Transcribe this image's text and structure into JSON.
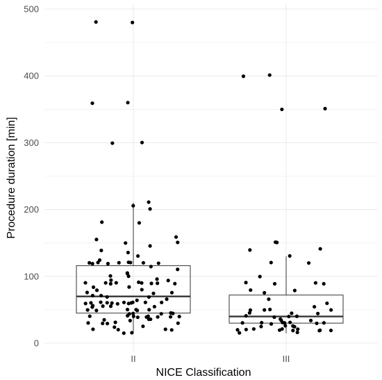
{
  "chart_data": {
    "type": "boxplot",
    "xlabel": "NICE Classification",
    "ylabel": "Procedure duration [min]",
    "ylim": [
      0,
      500
    ],
    "y_ticks": [
      0,
      100,
      200,
      300,
      400,
      500
    ],
    "grid": true,
    "legend": "none",
    "colors": {
      "grid": "#ebebeb",
      "box_stroke": "#333333",
      "point": "#000000",
      "tick_text": "#4d4d4d"
    },
    "categories": [
      "II",
      "III"
    ],
    "boxes": [
      {
        "category": "II",
        "min": 15,
        "q1": 45,
        "median": 70,
        "q3": 116,
        "max": 210
      },
      {
        "category": "III",
        "min": 15,
        "q1": 30,
        "median": 40,
        "q3": 72,
        "max": 130
      }
    ],
    "points": [
      {
        "category": "II",
        "values": [
          480,
          480,
          360,
          360,
          300,
          300,
          210,
          205,
          200,
          180,
          180,
          160,
          155,
          150,
          150,
          145,
          140,
          135,
          130,
          125,
          120,
          120,
          120,
          120,
          120,
          120,
          120,
          120,
          120,
          115,
          110,
          105,
          105,
          100,
          100,
          95,
          95,
          95,
          90,
          90,
          90,
          90,
          90,
          90,
          90,
          90,
          90,
          85,
          85,
          80,
          80,
          75,
          75,
          75,
          70,
          70,
          70,
          70,
          65,
          65,
          60,
          60,
          60,
          60,
          60,
          60,
          60,
          60,
          60,
          60,
          60,
          60,
          55,
          55,
          55,
          55,
          55,
          50,
          50,
          50,
          50,
          50,
          50,
          45,
          45,
          45,
          45,
          45,
          40,
          40,
          40,
          40,
          40,
          40,
          40,
          40,
          40,
          35,
          35,
          35,
          35,
          30,
          30,
          30,
          30,
          30,
          25,
          25,
          20,
          20,
          20,
          20,
          15,
          15
        ]
      },
      {
        "category": "III",
        "values": [
          400,
          400,
          350,
          350,
          150,
          150,
          140,
          140,
          130,
          120,
          120,
          100,
          90,
          90,
          90,
          90,
          80,
          80,
          75,
          65,
          60,
          55,
          50,
          50,
          50,
          50,
          45,
          45,
          45,
          40,
          40,
          40,
          40,
          35,
          35,
          35,
          30,
          30,
          30,
          30,
          30,
          30,
          30,
          30,
          25,
          25,
          25,
          25,
          20,
          20,
          20,
          20,
          20,
          20,
          20,
          20,
          20,
          20,
          15,
          15
        ]
      }
    ]
  }
}
